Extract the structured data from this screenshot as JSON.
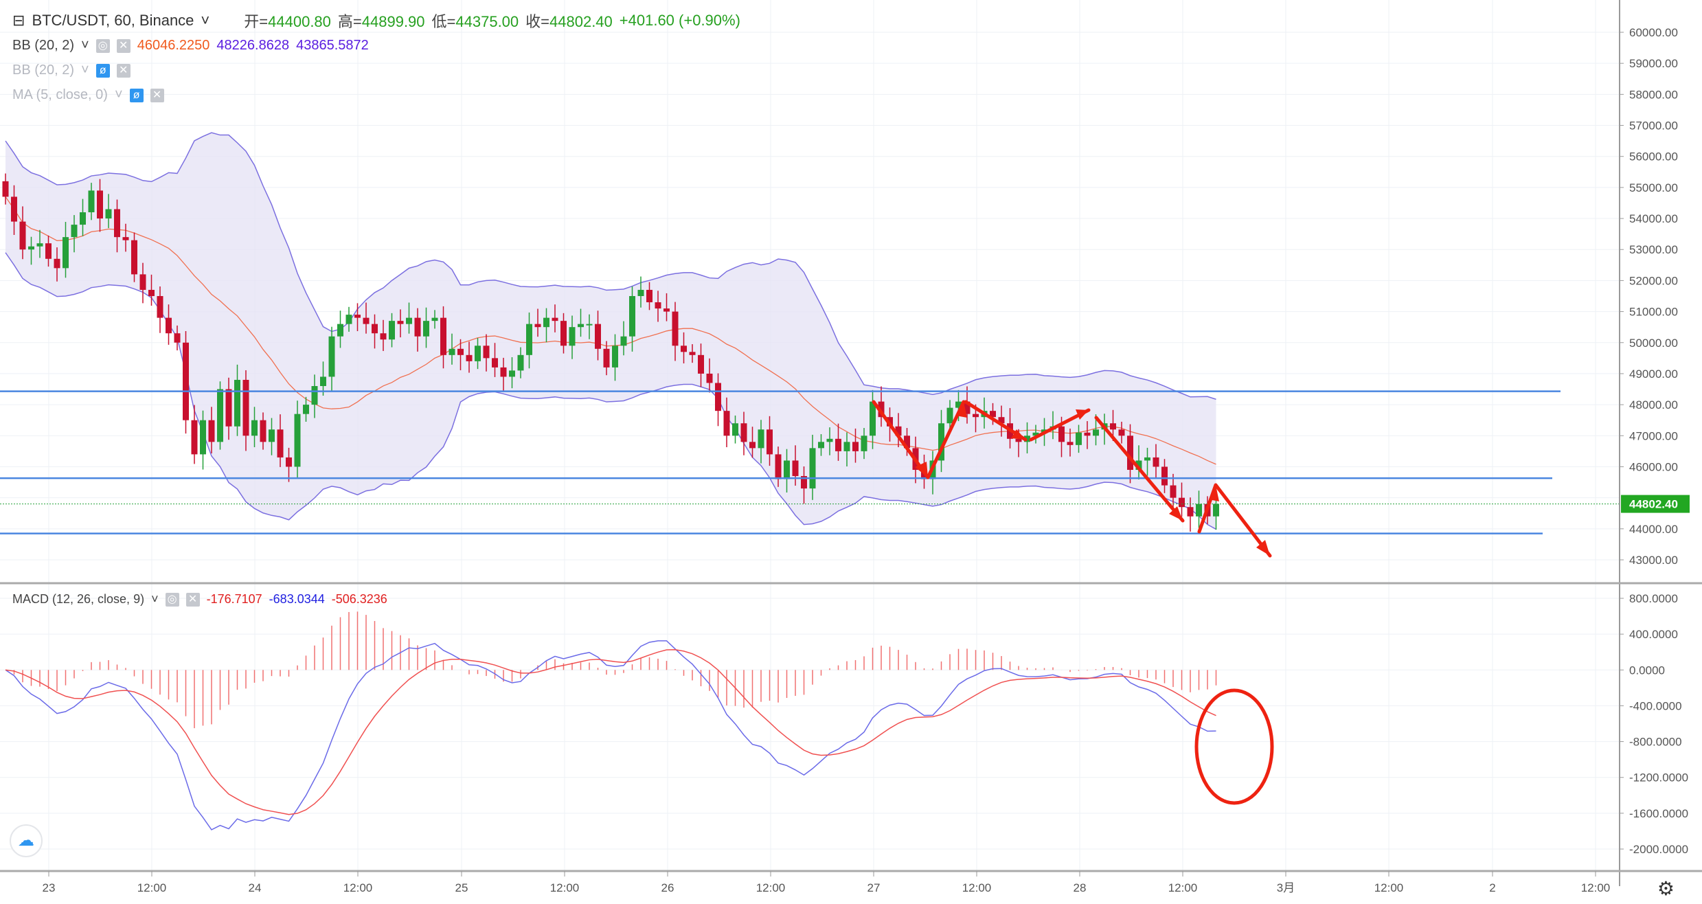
{
  "header": {
    "symbol": "BTC/USDT, 60, Binance",
    "open_label": "开=",
    "open": "44400.80",
    "high_label": "高=",
    "high": "44899.90",
    "low_label": "低=",
    "low": "44375.00",
    "close_label": "收=",
    "close": "44802.40",
    "change": "+401.60 (+0.90%)"
  },
  "indicators": [
    {
      "label": "BB (20, 2)",
      "values": [
        "46046.2250",
        "48226.8628",
        "43865.5872"
      ],
      "colors": [
        "#f05a1e",
        "#5a1ee0",
        "#5a1ee0"
      ]
    },
    {
      "label": "BB (20, 2)",
      "hidden": true
    },
    {
      "label": "MA (5, close, 0)",
      "hidden": true
    }
  ],
  "macd": {
    "label": "MACD (12, 26, close, 9)",
    "values": [
      "-176.7107",
      "-683.0344",
      "-506.3236"
    ],
    "colors": [
      "#e02020",
      "#2020e0",
      "#e02020"
    ]
  },
  "price_axis": [
    "60000.00",
    "59000.00",
    "58000.00",
    "57000.00",
    "56000.00",
    "55000.00",
    "54000.00",
    "53000.00",
    "52000.00",
    "51000.00",
    "50000.00",
    "49000.00",
    "48000.00",
    "47000.00",
    "46000.00",
    "44000.00",
    "43000.00"
  ],
  "current_price_label": "44802.40",
  "macd_axis": [
    "800.0000",
    "400.0000",
    "0.0000",
    "-400.0000",
    "-800.0000",
    "-1200.0000",
    "-1600.0000",
    "-2000.0000"
  ],
  "time_axis": [
    "23",
    "12:00",
    "24",
    "12:00",
    "25",
    "12:00",
    "26",
    "12:00",
    "27",
    "12:00",
    "28",
    "12:00",
    "3月",
    "12:00",
    "2",
    "12:00"
  ],
  "colors": {
    "up": "#26a03a",
    "down": "#c8102e",
    "band_fill": "#e4e2f4",
    "band_line": "#7b6fe0",
    "basis": "#f07050",
    "hline": "#4a86e0",
    "annotation": "#ee2211"
  },
  "chart_data": {
    "type": "candlestick",
    "interval": "60",
    "hlines": [
      48430,
      45630,
      43850
    ],
    "closes": [
      54700,
      53900,
      53000,
      53100,
      53200,
      52700,
      52400,
      53400,
      53800,
      54200,
      54900,
      54000,
      54300,
      53400,
      53300,
      52200,
      51700,
      51500,
      50800,
      50300,
      50000,
      47500,
      46400,
      47500,
      46800,
      48500,
      47300,
      48800,
      47000,
      47500,
      46800,
      47200,
      46300,
      46000,
      47700,
      48000,
      48600,
      48900,
      50200,
      50600,
      50900,
      50800,
      50600,
      50300,
      50100,
      50700,
      50600,
      50800,
      50200,
      50700,
      50800,
      49600,
      49800,
      49600,
      49400,
      49900,
      49500,
      49200,
      48900,
      49100,
      49600,
      50600,
      50500,
      50800,
      50700,
      49900,
      50500,
      50600,
      50600,
      49800,
      49200,
      49900,
      50200,
      51500,
      51700,
      51300,
      51100,
      51000,
      49900,
      49700,
      49600,
      49000,
      48700,
      47800,
      47000,
      47400,
      46800,
      46600,
      47200,
      46400,
      45600,
      46200,
      45700,
      45300,
      46600,
      46800,
      46900,
      46500,
      46800,
      46500,
      47000,
      48100,
      47600,
      47300,
      47000,
      46600,
      45900,
      45600,
      46200,
      47400,
      47900,
      48100,
      47700,
      47600,
      47800,
      47600,
      47400,
      46900,
      46800,
      47000,
      47100,
      47200,
      47300,
      46800,
      46700,
      47100,
      47000,
      47200,
      47400,
      47200,
      47000,
      45900,
      46200,
      46300,
      46000,
      45400,
      45000,
      44700,
      44400,
      44800,
      44400.8,
      44802.4
    ],
    "first_open": 55200,
    "price_range": [
      42500,
      60500
    ],
    "macd_range": [
      -2300,
      1000
    ]
  }
}
